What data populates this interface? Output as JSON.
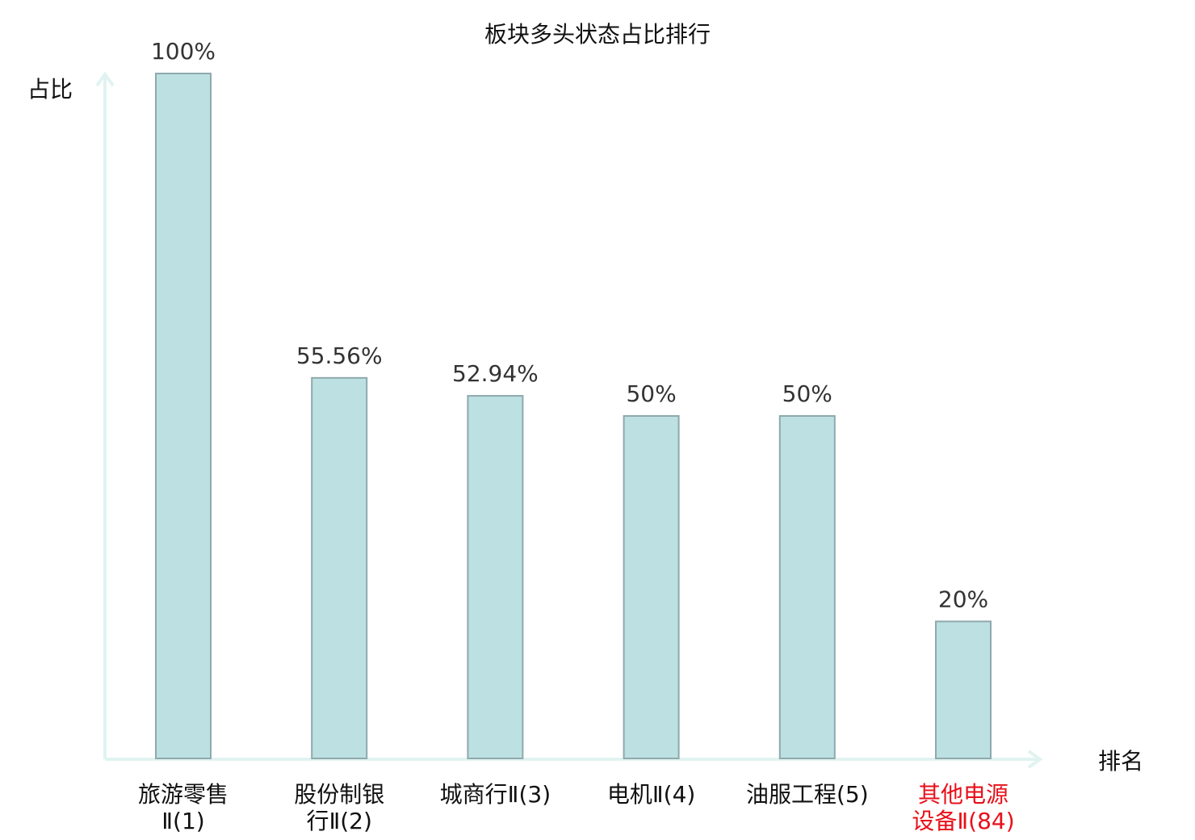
{
  "chart_data": {
    "type": "bar",
    "title": "板块多头状态占比排行",
    "ylabel": "占比",
    "xlabel": "排名",
    "ylim": [
      0,
      100
    ],
    "grid": false,
    "categories": [
      {
        "lines": [
          "旅游零售",
          "Ⅱ(1)"
        ],
        "highlight": false
      },
      {
        "lines": [
          "股份制银",
          "行Ⅱ(2)"
        ],
        "highlight": false
      },
      {
        "lines": [
          "城商行Ⅱ(3)"
        ],
        "highlight": false
      },
      {
        "lines": [
          "电机Ⅱ(4)"
        ],
        "highlight": false
      },
      {
        "lines": [
          "油服工程(5)"
        ],
        "highlight": false
      },
      {
        "lines": [
          "其他电源",
          "设备Ⅱ(84)"
        ],
        "highlight": true
      }
    ],
    "values": [
      100,
      55.56,
      52.94,
      50,
      50,
      20
    ],
    "value_labels": [
      "100%",
      "55.56%",
      "52.94%",
      "50%",
      "50%",
      "20%"
    ]
  },
  "colors": {
    "bar_fill": "#bde0e3",
    "bar_stroke": "#8fa9ac",
    "axis": "#e0f3f1",
    "highlight_label": "#e8101a"
  }
}
